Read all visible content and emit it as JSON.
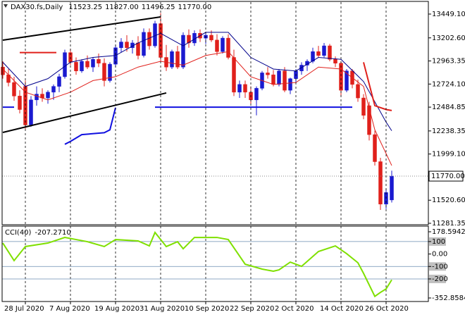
{
  "chart_data": [
    {
      "type": "candlestick",
      "symbol": "DAX30.fs,Daily",
      "header_values": [
        "11523.25",
        "11827.00",
        "11496.25",
        "11770.00"
      ],
      "categories": [
        null,
        null,
        null,
        null,
        "28 Jul 2020",
        null,
        null,
        null,
        null,
        null,
        null,
        null,
        "7 Aug 2020",
        null,
        null,
        null,
        null,
        null,
        null,
        null,
        "19 Aug 2020",
        null,
        null,
        null,
        null,
        null,
        null,
        null,
        "31 Aug 2020",
        null,
        null,
        null,
        null,
        null,
        null,
        null,
        "10 Sep 2020",
        null,
        null,
        null,
        null,
        null,
        null,
        null,
        "22 Sep 2020",
        null,
        null,
        null,
        null,
        null,
        null,
        null,
        "2 Oct 2020",
        null,
        null,
        null,
        null,
        null,
        null,
        null,
        "14 Oct 2020",
        null,
        null,
        null,
        null,
        null,
        null,
        null,
        "26 Oct 2020",
        null
      ],
      "open": [
        12900,
        12820,
        12740,
        12600,
        12700,
        12300,
        12560,
        12620,
        12580,
        12640,
        12700,
        12800,
        13050,
        12950,
        12860,
        12960,
        12900,
        12980,
        12940,
        12760,
        12930,
        13100,
        13160,
        13100,
        13150,
        13020,
        13260,
        13120,
        13350,
        13000,
        12900,
        13060,
        12900,
        13230,
        13150,
        13250,
        13200,
        13230,
        13180,
        13060,
        13200,
        13000,
        12640,
        12720,
        12640,
        12560,
        12680,
        12840,
        12820,
        12720,
        12860,
        12660,
        12780,
        12860,
        12920,
        12960,
        13060,
        13020,
        13120,
        12980,
        12940,
        12660,
        12860,
        12720,
        12580,
        12500,
        12200,
        11920,
        11480,
        11523.25
      ],
      "high": [
        12960,
        12880,
        12800,
        12660,
        12760,
        12600,
        12700,
        12680,
        12660,
        12720,
        12830,
        13080,
        13090,
        13000,
        12980,
        13020,
        13000,
        13040,
        12990,
        12950,
        13130,
        13200,
        13230,
        13180,
        13220,
        13300,
        13300,
        13380,
        13460,
        13130,
        13080,
        13120,
        13260,
        13290,
        13280,
        13290,
        13260,
        13280,
        13240,
        13220,
        13240,
        13080,
        12760,
        12760,
        12700,
        12700,
        12860,
        12900,
        12870,
        12880,
        12900,
        12790,
        12880,
        12950,
        12980,
        13100,
        13120,
        13150,
        13140,
        13010,
        12960,
        12880,
        12880,
        12770,
        12620,
        12540,
        12240,
        11960,
        11640,
        11827
      ],
      "low": [
        12780,
        12700,
        12550,
        12420,
        12260,
        12280,
        12500,
        12540,
        12520,
        12560,
        12640,
        12780,
        12920,
        12820,
        12840,
        12880,
        12850,
        12900,
        12700,
        12740,
        12900,
        13050,
        13060,
        13040,
        12980,
        13000,
        13080,
        13100,
        12960,
        12860,
        12880,
        12880,
        12880,
        13100,
        13120,
        13160,
        13140,
        13160,
        13020,
        13040,
        12980,
        12600,
        12580,
        12580,
        12520,
        12400,
        12660,
        12780,
        12700,
        12700,
        12640,
        12620,
        12740,
        12820,
        12860,
        12940,
        13000,
        13000,
        12960,
        12900,
        12600,
        12640,
        12680,
        12540,
        12360,
        12140,
        11880,
        11420,
        11430,
        11496.25
      ],
      "close": [
        12820,
        12740,
        12600,
        12460,
        12300,
        12560,
        12620,
        12580,
        12640,
        12700,
        12800,
        13050,
        12950,
        12860,
        12960,
        12900,
        12980,
        12940,
        12760,
        12930,
        13100,
        13160,
        13100,
        13150,
        13020,
        13260,
        13120,
        13350,
        13000,
        12900,
        13060,
        12900,
        13230,
        13150,
        13250,
        13200,
        13230,
        13180,
        13060,
        13200,
        13000,
        12640,
        12720,
        12640,
        12560,
        12680,
        12840,
        12820,
        12720,
        12860,
        12660,
        12780,
        12860,
        12920,
        12960,
        13060,
        13020,
        13120,
        12980,
        12940,
        12660,
        12860,
        12720,
        12580,
        12400,
        12200,
        11920,
        11480,
        11600,
        11770
      ],
      "up_color": "#1a1ad0",
      "down_color": "#e0201b",
      "lines": [
        {
          "color": "#000000",
          "width": 2,
          "x": [
            0,
            28
          ],
          "values": [
            13179,
            13420
          ]
        },
        {
          "color": "#000000",
          "width": 2,
          "x": [
            0,
            29
          ],
          "values": [
            12223,
            12632
          ]
        },
        {
          "color": "#e0201b",
          "width": 1,
          "x": [
            0,
            4,
            8,
            12,
            16,
            20,
            24,
            28,
            32,
            36,
            40,
            44,
            48,
            52,
            56,
            60,
            64,
            66,
            69
          ],
          "values": [
            12880,
            12640,
            12560,
            12640,
            12760,
            12800,
            12900,
            12960,
            12920,
            13020,
            13060,
            12800,
            12720,
            12740,
            12900,
            12880,
            12700,
            12250,
            11880
          ]
        },
        {
          "color": "#00008b",
          "width": 1,
          "x": [
            0,
            4,
            8,
            12,
            16,
            20,
            24,
            28,
            32,
            36,
            40,
            44,
            48,
            52,
            56,
            60,
            64,
            68,
            69
          ],
          "values": [
            12950,
            12700,
            12780,
            12950,
            13000,
            13020,
            13150,
            13250,
            13120,
            13260,
            13260,
            13000,
            12880,
            12860,
            13000,
            12980,
            12750,
            12330,
            12240
          ]
        },
        {
          "color": "#e0201b",
          "width": 2,
          "x": [
            64,
            66,
            68,
            69
          ],
          "values": [
            12950,
            12500,
            12460,
            12450
          ]
        },
        {
          "color": "#e0201b",
          "width": 2,
          "x": [
            3,
            9.5
          ],
          "values": [
            13050,
            13050
          ]
        },
        {
          "color": "#1010e0",
          "width": 2,
          "x": [
            0,
            2,
            3,
            27,
            62
          ],
          "values": [
            12485,
            12485,
            null,
            12485,
            12485
          ]
        },
        {
          "color": "#1010e0",
          "width": 2,
          "x": [
            11,
            12,
            14,
            18,
            19,
            20
          ],
          "values": [
            12100,
            12130,
            12200,
            12220,
            12250,
            12480
          ]
        }
      ],
      "current_price": {
        "value": 11770,
        "label": "11770.00"
      },
      "ylim": [
        11274,
        13573
      ],
      "yticks": [
        {
          "value": 13449.1,
          "label": "13449.10"
        },
        {
          "value": 13202.6,
          "label": "13202.60"
        },
        12963.35,
        {
          "value": 12724.1,
          "label": "12724.10"
        },
        12484.85,
        12238.35,
        {
          "value": 11999.1,
          "label": "11999.10"
        },
        {
          "value": 11520.6,
          "label": "11520.60"
        },
        11281.35
      ],
      "xgrid": true
    },
    {
      "type": "line",
      "title": "CCI(40)",
      "current": {
        "value": -207.271,
        "label": "-207.2710"
      },
      "x": [
        0,
        2,
        4,
        8,
        11,
        15,
        18,
        20,
        24,
        26,
        27,
        29,
        31,
        32,
        34,
        38,
        40,
        43,
        46,
        48,
        49,
        51,
        53,
        56,
        59,
        61,
        63,
        64,
        66,
        67,
        68,
        69
      ],
      "values": [
        88,
        -53,
        60,
        88,
        133,
        99,
        60,
        116,
        105,
        65,
        173,
        60,
        99,
        42,
        133,
        133,
        116,
        -82,
        -121,
        -138,
        -127,
        -65,
        -99,
        20,
        65,
        3,
        -70,
        -155,
        -340,
        -308,
        -280,
        -207.271
      ],
      "color": "#7fe000",
      "level_color": "#6a8db0",
      "ylim": [
        -352.8584,
        178.5942
      ],
      "yticks": [
        178.5942,
        {
          "value": 100,
          "label": "100",
          "level": true
        },
        {
          "value": 0,
          "label": "0.00"
        },
        {
          "value": -100,
          "label": "-100",
          "level": true
        },
        {
          "value": -200,
          "label": "-200",
          "level": true
        },
        -352.8584
      ]
    }
  ]
}
